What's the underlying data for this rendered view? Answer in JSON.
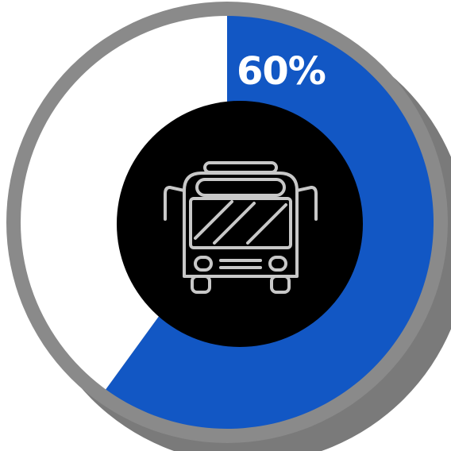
{
  "chart_data": {
    "type": "pie",
    "slices": [
      {
        "value": 60,
        "color": "#1257c4"
      },
      {
        "value": 40,
        "color": "#ffffff"
      }
    ],
    "data_label": "60%"
  },
  "colors": {
    "ring": "#8a8a8a",
    "shadow": "#7a7a7a",
    "center": "#000000",
    "icon_stroke": "#c8c8c8",
    "label": "#ffffff"
  },
  "icon": "bus-icon"
}
